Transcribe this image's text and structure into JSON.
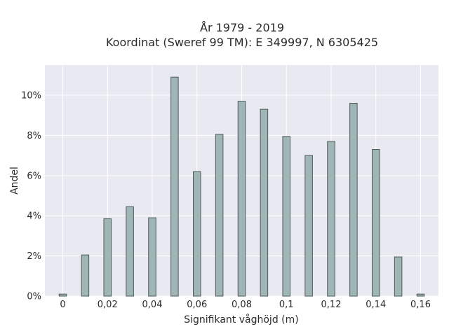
{
  "chart_data": {
    "type": "bar",
    "title_line1": "År 1979 - 2019",
    "title_line2": "Koordinat (Sweref 99 TM): E 349997, N 6305425",
    "xlabel": "Signifikant våghöjd (m)",
    "ylabel": "Andel",
    "x": [
      0,
      0.01,
      0.02,
      0.03,
      0.04,
      0.05,
      0.06,
      0.07,
      0.08,
      0.09,
      0.1,
      0.11,
      0.12,
      0.13,
      0.14,
      0.15,
      0.16
    ],
    "values": [
      0.1,
      2.05,
      3.85,
      4.45,
      3.9,
      10.9,
      6.2,
      8.05,
      9.7,
      9.3,
      7.95,
      7.0,
      7.7,
      9.6,
      7.3,
      1.95,
      0.1
    ],
    "xlim": [
      -0.008,
      0.168
    ],
    "ylim": [
      0,
      11.5
    ],
    "xticks": [
      0,
      0.02,
      0.04,
      0.06,
      0.08,
      0.1,
      0.12,
      0.14,
      0.16
    ],
    "xtick_labels": [
      "0",
      "0,02",
      "0,04",
      "0,06",
      "0,08",
      "0,1",
      "0,12",
      "0,14",
      "0,16"
    ],
    "yticks": [
      0,
      2,
      4,
      6,
      8,
      10
    ],
    "ytick_labels": [
      "0%",
      "2%",
      "4%",
      "6%",
      "8%",
      "10%"
    ],
    "grid": true,
    "colors": {
      "bar_fill": "#9fb5b6",
      "bar_edge": "#4d5a5a",
      "plot_bg": "#e9e9f1"
    }
  }
}
